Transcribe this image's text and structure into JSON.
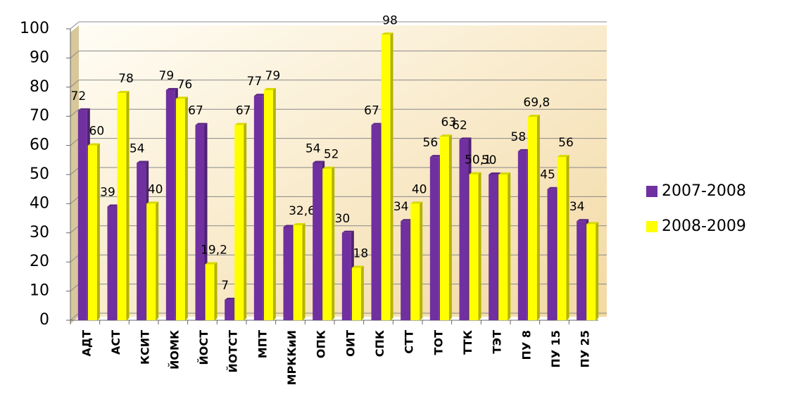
{
  "chart_data": {
    "type": "bar",
    "categories": [
      "АДТ",
      "АСТ",
      "КСИТ",
      "ЙОМК",
      "ЙОСТ",
      "ЙОТСТ",
      "МПТ",
      "МРККиИ",
      "ОПК",
      "ОИТ",
      "СПК",
      "СТТ",
      "ТОТ",
      "ТТК",
      "ТЭТ",
      "ПУ 8",
      "ПУ 15",
      "ПУ 25"
    ],
    "series": [
      {
        "name": "2007-2008",
        "color": "#7030a0",
        "values": [
          72,
          39,
          54,
          79,
          67,
          7,
          77,
          32,
          54,
          30,
          67,
          34,
          56,
          62,
          50,
          58,
          45,
          34
        ],
        "value_labels": [
          "72",
          "39",
          "54",
          "79",
          "67",
          "7",
          "77",
          null,
          "54",
          "30",
          "67",
          "34",
          "56",
          "62",
          "50",
          "58",
          "45",
          "34"
        ]
      },
      {
        "name": "2008-2009",
        "color": "#ffff00",
        "values": [
          60,
          78,
          40,
          76,
          19.2,
          67,
          79,
          32.6,
          52,
          18,
          98,
          40,
          63,
          50.1,
          50,
          69.8,
          56,
          33
        ],
        "value_labels": [
          "60",
          "78",
          "40",
          "76",
          "19,2",
          "67",
          "79",
          "32,6",
          "52",
          "18",
          "98",
          "40",
          "63",
          "50,1",
          null,
          "69,8",
          "56",
          null
        ]
      }
    ],
    "ylim": [
      0,
      100
    ],
    "yticks": [
      0,
      10,
      20,
      30,
      40,
      50,
      60,
      70,
      80,
      90,
      100
    ],
    "grid": true,
    "legend": "right"
  }
}
